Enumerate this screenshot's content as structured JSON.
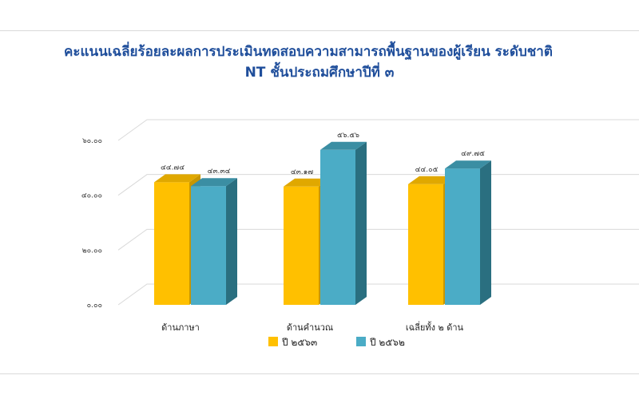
{
  "chart_data": {
    "type": "bar",
    "title_line1": "คะแนนเฉลี่ยร้อยละผลการประเมินทดสอบความสามารถพื้นฐานของผู้เรียน ระดับชาติ",
    "title_line2": "NT ชั้นประถมศึกษาปีที่ ๓",
    "categories": [
      "ด้านภาษา",
      "ด้านคำนวณ",
      "เฉลี่ยทั้ง ๒ ด้าน"
    ],
    "y_ticks": [
      "๐.๐๐",
      "๒๐.๐๐",
      "๔๐.๐๐",
      "๖๐.๐๐"
    ],
    "ylim": [
      0,
      60
    ],
    "grid": true,
    "legend_position": "bottom",
    "series": [
      {
        "name": "ปี ๒๕๖๓",
        "color": "#ffc000",
        "side_color": "#c89600",
        "top_color": "#e0a800",
        "values": [
          44.74,
          43.17,
          44.05
        ],
        "labels": [
          "๔๔.๗๔",
          "๔๓.๑๗",
          "๔๔.๐๕"
        ]
      },
      {
        "name": "ปี ๒๕๖๒",
        "color": "#4bacc6",
        "side_color": "#2a6f80",
        "top_color": "#3b8ea3",
        "values": [
          43.34,
          56.56,
          49.75
        ],
        "labels": [
          "๔๓.๓๔",
          "๕๖.๕๖",
          "๔๙.๗๕"
        ]
      }
    ]
  }
}
